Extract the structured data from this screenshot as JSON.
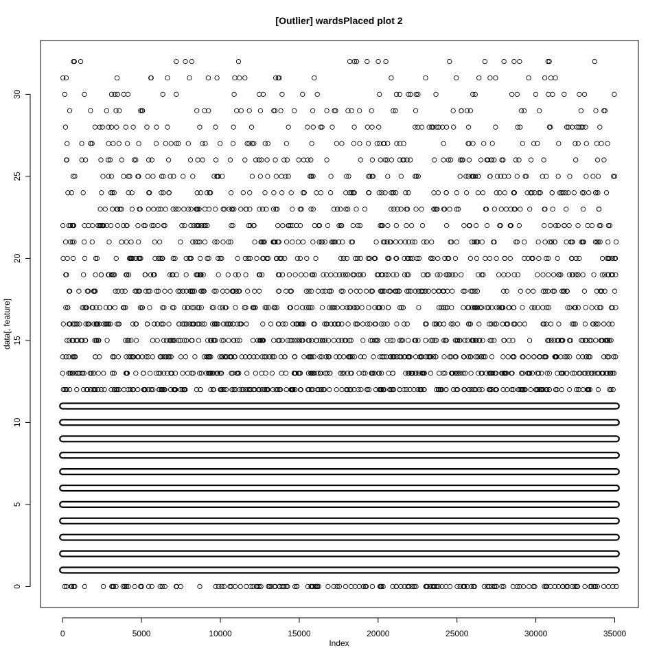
{
  "chart_data": {
    "type": "scatter",
    "title": "[Outlier] wardsPlaced plot 2",
    "xlabel": "Index",
    "ylabel": "data[, feature]",
    "xlim": [
      -1400,
      36500
    ],
    "ylim": [
      -1.28,
      33.28
    ],
    "x_ticks": [
      0,
      5000,
      10000,
      15000,
      20000,
      25000,
      30000,
      35000
    ],
    "x_tick_labels": [
      "0",
      "5000",
      "10000",
      "15000",
      "20000",
      "25000",
      "30000",
      "35000"
    ],
    "y_ticks": [
      0,
      5,
      10,
      15,
      20,
      25,
      30
    ],
    "y_tick_labels": [
      "0",
      "5",
      "10",
      "15",
      "20",
      "25",
      "30"
    ],
    "grid": false,
    "marker": "open-circle",
    "n_points": 35100,
    "x_range": [
      0,
      35100
    ],
    "y_levels": [
      0,
      1,
      2,
      3,
      4,
      5,
      6,
      7,
      8,
      9,
      10,
      11,
      12,
      13,
      14,
      15,
      16,
      17,
      18,
      19,
      20,
      21,
      22,
      23,
      24,
      25,
      26,
      27,
      28,
      29,
      30,
      31,
      32
    ],
    "relative_density_per_level": [
      0.6,
      0.9,
      1,
      1,
      1,
      1,
      1,
      1,
      1,
      0.98,
      0.95,
      0.9,
      0.85,
      0.8,
      0.72,
      0.65,
      0.6,
      0.55,
      0.5,
      0.45,
      0.42,
      0.4,
      0.38,
      0.35,
      0.32,
      0.28,
      0.25,
      0.22,
      0.2,
      0.16,
      0.13,
      0.1,
      0.08
    ]
  }
}
